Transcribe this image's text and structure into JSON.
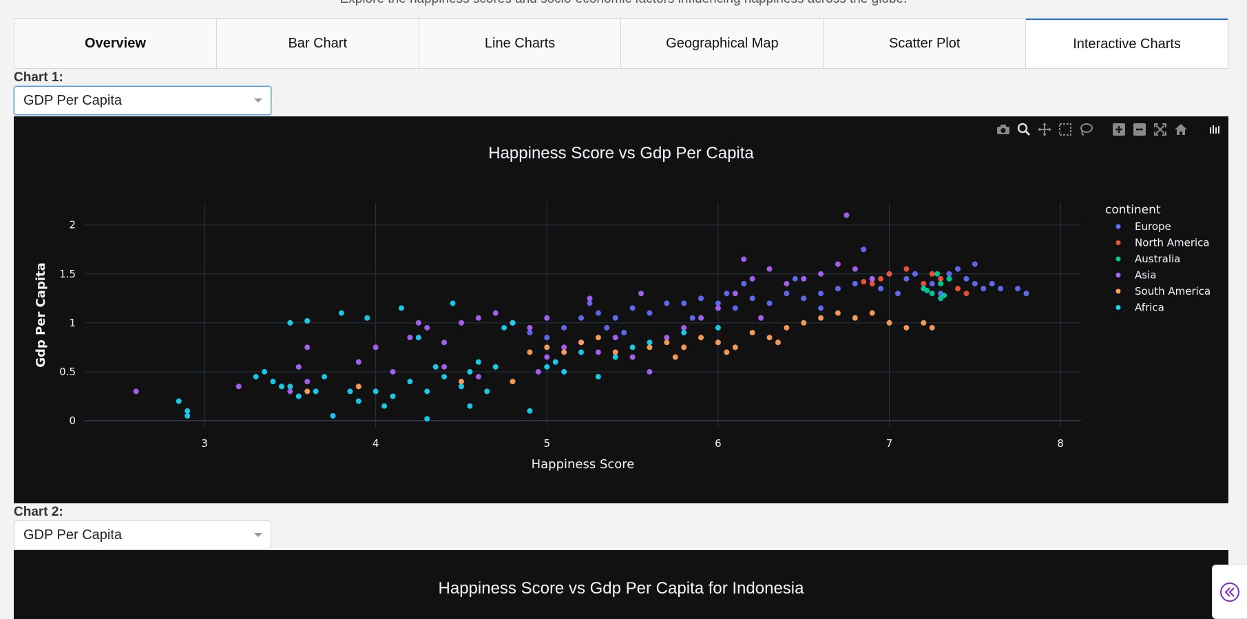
{
  "header": {
    "subtitle": "Explore the happiness scores and socio-economic factors influencing happiness across the globe."
  },
  "tabs": [
    {
      "label": "Overview"
    },
    {
      "label": "Bar Chart"
    },
    {
      "label": "Line Charts"
    },
    {
      "label": "Geographical Map"
    },
    {
      "label": "Scatter Plot"
    },
    {
      "label": "Interactive Charts"
    }
  ],
  "active_tab": "Interactive Charts",
  "chart1": {
    "label": "Chart 1:",
    "selected": "GDP Per Capita"
  },
  "chart2": {
    "label": "Chart 2:",
    "selected": "GDP Per Capita",
    "title": "Happiness Score vs Gdp Per Capita for Indonesia"
  },
  "modebar": [
    "camera-icon",
    "zoom-icon",
    "pan-icon",
    "box-select-icon",
    "lasso-icon",
    "zoom-in-icon",
    "zoom-out-icon",
    "autoscale-icon",
    "reset-axes-icon",
    "plotly-logo-icon"
  ],
  "chart_data": {
    "type": "scatter",
    "title": "Happiness Score vs Gdp Per Capita",
    "xlabel": "Happiness Score",
    "ylabel": "Gdp Per Capita",
    "xlim": [
      2.3,
      8.12
    ],
    "ylim": [
      -0.07,
      2.23
    ],
    "xticks": [
      3,
      4,
      5,
      6,
      7,
      8
    ],
    "yticks": [
      0,
      0.5,
      1,
      1.5,
      2
    ],
    "ytick_labels": [
      "0",
      "0.5",
      "1",
      "1.5",
      "2"
    ],
    "legend_title": "continent",
    "series": [
      {
        "name": "Europe",
        "color": "#636efa",
        "points": [
          [
            5.0,
            0.85
          ],
          [
            5.1,
            0.95
          ],
          [
            5.2,
            1.05
          ],
          [
            5.3,
            1.1
          ],
          [
            5.35,
            0.95
          ],
          [
            5.4,
            1.05
          ],
          [
            5.5,
            1.15
          ],
          [
            5.6,
            1.1
          ],
          [
            5.7,
            1.2
          ],
          [
            5.8,
            1.2
          ],
          [
            5.85,
            1.05
          ],
          [
            5.9,
            1.25
          ],
          [
            6.0,
            1.2
          ],
          [
            6.05,
            1.3
          ],
          [
            6.1,
            1.15
          ],
          [
            6.2,
            1.25
          ],
          [
            6.3,
            1.2
          ],
          [
            6.4,
            1.3
          ],
          [
            6.5,
            1.25
          ],
          [
            6.6,
            1.3
          ],
          [
            6.7,
            1.35
          ],
          [
            6.8,
            1.4
          ],
          [
            6.85,
            1.75
          ],
          [
            6.9,
            1.45
          ],
          [
            6.95,
            1.35
          ],
          [
            7.0,
            1.5
          ],
          [
            7.1,
            1.45
          ],
          [
            7.2,
            1.35
          ],
          [
            7.25,
            1.4
          ],
          [
            7.3,
            1.3
          ],
          [
            7.35,
            1.5
          ],
          [
            7.4,
            1.55
          ],
          [
            7.45,
            1.45
          ],
          [
            7.5,
            1.4
          ],
          [
            7.5,
            1.6
          ],
          [
            7.55,
            1.35
          ],
          [
            7.6,
            1.4
          ],
          [
            7.65,
            1.35
          ],
          [
            7.75,
            1.35
          ],
          [
            7.8,
            1.3
          ],
          [
            5.45,
            0.9
          ],
          [
            6.15,
            1.4
          ],
          [
            6.45,
            1.45
          ],
          [
            7.05,
            1.3
          ],
          [
            7.15,
            1.5
          ],
          [
            4.9,
            0.9
          ],
          [
            5.25,
            1.2
          ],
          [
            6.6,
            1.15
          ]
        ]
      },
      {
        "name": "North America",
        "color": "#ef553b",
        "points": [
          [
            6.9,
            1.4
          ],
          [
            7.0,
            1.5
          ],
          [
            7.1,
            1.55
          ],
          [
            7.2,
            1.4
          ],
          [
            7.3,
            1.45
          ],
          [
            7.4,
            1.35
          ],
          [
            7.45,
            1.3
          ],
          [
            6.95,
            1.45
          ],
          [
            7.25,
            1.5
          ],
          [
            6.85,
            1.42
          ]
        ]
      },
      {
        "name": "Australia",
        "color": "#00cc96",
        "points": [
          [
            7.2,
            1.35
          ],
          [
            7.25,
            1.3
          ],
          [
            7.3,
            1.4
          ],
          [
            7.35,
            1.45
          ],
          [
            7.3,
            1.25
          ],
          [
            7.28,
            1.5
          ],
          [
            7.22,
            1.33
          ],
          [
            7.32,
            1.28
          ]
        ]
      },
      {
        "name": "Asia",
        "color": "#ab63fa",
        "points": [
          [
            2.6,
            0.3
          ],
          [
            3.2,
            0.35
          ],
          [
            3.5,
            0.3
          ],
          [
            3.6,
            0.4
          ],
          [
            3.9,
            0.6
          ],
          [
            4.0,
            0.75
          ],
          [
            4.2,
            0.85
          ],
          [
            4.3,
            0.95
          ],
          [
            4.4,
            0.8
          ],
          [
            4.5,
            1.0
          ],
          [
            4.6,
            1.05
          ],
          [
            4.7,
            1.1
          ],
          [
            4.8,
            1.0
          ],
          [
            4.9,
            0.95
          ],
          [
            5.0,
            1.05
          ],
          [
            5.1,
            0.75
          ],
          [
            5.2,
            0.8
          ],
          [
            5.3,
            0.7
          ],
          [
            5.4,
            0.85
          ],
          [
            5.5,
            0.65
          ],
          [
            5.6,
            0.5
          ],
          [
            5.7,
            0.85
          ],
          [
            5.8,
            0.95
          ],
          [
            5.9,
            1.05
          ],
          [
            6.0,
            1.15
          ],
          [
            6.1,
            1.3
          ],
          [
            6.2,
            1.45
          ],
          [
            6.3,
            1.55
          ],
          [
            6.4,
            1.4
          ],
          [
            6.5,
            1.45
          ],
          [
            6.6,
            1.5
          ],
          [
            6.7,
            1.6
          ],
          [
            6.75,
            2.1
          ],
          [
            6.8,
            1.55
          ],
          [
            6.9,
            1.45
          ],
          [
            4.1,
            0.5
          ],
          [
            4.4,
            0.55
          ],
          [
            3.6,
            0.75
          ],
          [
            5.0,
            0.65
          ],
          [
            4.6,
            0.45
          ],
          [
            5.55,
            1.3
          ],
          [
            6.15,
            1.65
          ],
          [
            4.95,
            0.5
          ],
          [
            5.25,
            1.25
          ],
          [
            6.25,
            1.05
          ],
          [
            4.25,
            1.0
          ],
          [
            3.55,
            0.55
          ]
        ]
      },
      {
        "name": "South America",
        "color": "#ffa15a",
        "points": [
          [
            3.6,
            0.3
          ],
          [
            3.9,
            0.35
          ],
          [
            4.5,
            0.4
          ],
          [
            4.9,
            0.7
          ],
          [
            5.0,
            0.75
          ],
          [
            5.1,
            0.7
          ],
          [
            5.2,
            0.8
          ],
          [
            5.3,
            0.85
          ],
          [
            5.4,
            0.7
          ],
          [
            5.6,
            0.75
          ],
          [
            5.7,
            0.8
          ],
          [
            5.8,
            0.75
          ],
          [
            5.9,
            0.85
          ],
          [
            6.0,
            0.8
          ],
          [
            6.1,
            0.75
          ],
          [
            6.2,
            0.9
          ],
          [
            6.3,
            0.85
          ],
          [
            6.4,
            0.95
          ],
          [
            6.5,
            1.0
          ],
          [
            6.6,
            1.05
          ],
          [
            6.7,
            1.1
          ],
          [
            6.8,
            1.05
          ],
          [
            6.9,
            1.1
          ],
          [
            7.0,
            1.0
          ],
          [
            7.1,
            0.95
          ],
          [
            7.2,
            1.0
          ],
          [
            7.25,
            0.95
          ],
          [
            5.75,
            0.65
          ],
          [
            6.05,
            0.7
          ],
          [
            6.35,
            0.8
          ],
          [
            4.8,
            0.4
          ]
        ]
      },
      {
        "name": "Africa",
        "color": "#19d3f3",
        "points": [
          [
            2.85,
            0.2
          ],
          [
            2.9,
            0.05
          ],
          [
            2.9,
            0.1
          ],
          [
            3.3,
            0.45
          ],
          [
            3.4,
            0.4
          ],
          [
            3.5,
            0.35
          ],
          [
            3.5,
            1.0
          ],
          [
            3.55,
            0.25
          ],
          [
            3.6,
            1.02
          ],
          [
            3.7,
            0.45
          ],
          [
            3.75,
            0.05
          ],
          [
            3.8,
            1.1
          ],
          [
            3.85,
            0.3
          ],
          [
            3.9,
            0.2
          ],
          [
            4.0,
            0.3
          ],
          [
            4.1,
            0.25
          ],
          [
            4.15,
            1.15
          ],
          [
            4.2,
            0.4
          ],
          [
            4.3,
            0.3
          ],
          [
            4.3,
            0.02
          ],
          [
            4.35,
            0.55
          ],
          [
            4.4,
            0.45
          ],
          [
            4.45,
            1.2
          ],
          [
            4.5,
            0.35
          ],
          [
            4.55,
            0.5
          ],
          [
            4.6,
            0.6
          ],
          [
            4.65,
            0.3
          ],
          [
            4.7,
            0.55
          ],
          [
            4.75,
            0.95
          ],
          [
            4.8,
            1.0
          ],
          [
            4.9,
            0.1
          ],
          [
            5.0,
            0.55
          ],
          [
            5.05,
            0.6
          ],
          [
            5.1,
            0.5
          ],
          [
            5.2,
            0.7
          ],
          [
            5.3,
            0.45
          ],
          [
            5.4,
            0.65
          ],
          [
            5.5,
            0.75
          ],
          [
            5.6,
            0.8
          ],
          [
            5.8,
            0.9
          ],
          [
            6.0,
            0.95
          ],
          [
            3.45,
            0.35
          ],
          [
            3.65,
            0.3
          ],
          [
            3.95,
            1.05
          ],
          [
            4.25,
            0.85
          ],
          [
            4.55,
            0.15
          ],
          [
            4.05,
            0.15
          ],
          [
            3.35,
            0.5
          ]
        ]
      }
    ]
  }
}
